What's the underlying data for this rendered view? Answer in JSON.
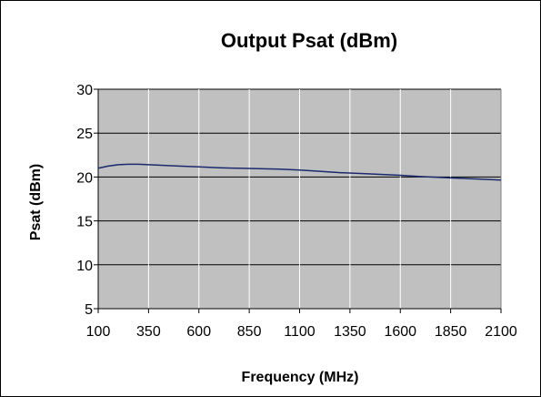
{
  "chart_data": {
    "type": "line",
    "title": "Output Psat (dBm)",
    "xlabel": "Frequency (MHz)",
    "ylabel": "Psat (dBm)",
    "xlim": [
      100,
      2100
    ],
    "ylim": [
      5,
      30
    ],
    "x_ticks": [
      100,
      350,
      600,
      850,
      1100,
      1350,
      1600,
      1850,
      2100
    ],
    "y_ticks": [
      5,
      10,
      15,
      20,
      25,
      30
    ],
    "grid": true,
    "legend": "none",
    "colors": {
      "plot_background": "#c0c0c0",
      "series_line": "#1a2a6c",
      "gridline": "#000000"
    },
    "series": [
      {
        "x": [
          100,
          150,
          200,
          250,
          300,
          350,
          400,
          500,
          600,
          700,
          800,
          900,
          1000,
          1100,
          1200,
          1300,
          1400,
          1500,
          1600,
          1700,
          1800,
          1900,
          2000,
          2100
        ],
        "y": [
          21.0,
          21.25,
          21.4,
          21.45,
          21.45,
          21.4,
          21.35,
          21.25,
          21.15,
          21.05,
          21.0,
          20.95,
          20.9,
          20.8,
          20.65,
          20.5,
          20.4,
          20.3,
          20.2,
          20.05,
          19.95,
          19.85,
          19.75,
          19.65
        ]
      }
    ]
  }
}
